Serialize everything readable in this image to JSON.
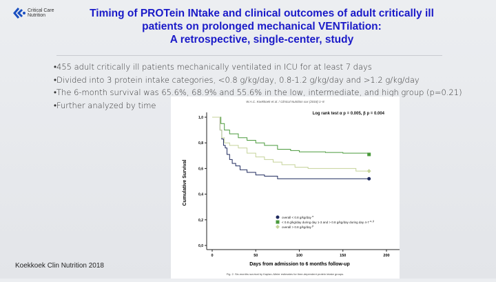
{
  "logo": {
    "text_line1": "Critical Care",
    "text_line2": "Nutrition"
  },
  "title": [
    "Timing of PROTein INtake and clinical outcomes of adult critically ill",
    "patients on prolonged mechanical VENTilation:",
    "A retrospective, single-center, study"
  ],
  "bullets": [
    "•455 adult critically ill patients mechanically ventilated in ICU for at least 7 days",
    "•Divided into 3 protein intake categories, <0.8 g/kg/day, 0.8-1.2 g/kg/day and >1.2 g/kg/day",
    "•The 6-month survival was 65.6%, 68.9% and 55.6% in the low, intermediate, and high group (p=0.21)",
    "•Further analyzed by time"
  ],
  "citation": "Koekkoek Clin Nutrition 2018",
  "chart_data": {
    "type": "line",
    "header": "W.A.C. Koekkoek et al. / Clinical Nutrition xxx (2018) 1–8",
    "annotation": "Log rank test α p = 0.005, β p = 0.004",
    "xlabel": "Days from admission to 6 months follow-up",
    "ylabel": "Cumulative Survival",
    "xlim": [
      0,
      200
    ],
    "ylim": [
      0,
      1
    ],
    "xticks": [
      "0",
      "50",
      "100",
      "150",
      "200"
    ],
    "yticks": [
      "0,0",
      "0,2",
      "0,4",
      "0,6",
      "0,8",
      "1,0"
    ],
    "caption": "Fig. 2. Six-months survival by Kaplan–Meier estimates for time-dependent protein intake groups.",
    "legend_position": "bottom-center",
    "series": [
      {
        "name": "overall < 0.8 g/kg/day",
        "superscript": "α",
        "color": "#1f2a5e",
        "marker": "circle",
        "x": [
          0,
          7,
          9,
          11,
          13,
          15,
          17,
          20,
          23,
          27,
          32,
          40,
          50,
          60,
          75,
          180
        ],
        "y": [
          1,
          1,
          0.9,
          0.83,
          0.78,
          0.76,
          0.71,
          0.67,
          0.64,
          0.62,
          0.59,
          0.57,
          0.55,
          0.54,
          0.52,
          0.52
        ]
      },
      {
        "name": "< 0.8 g/kg/day during day 1-3 and > 0.8 g/kg/day during day 4-7",
        "superscript": "α, β",
        "color": "#4a9a3c",
        "marker": "square",
        "x": [
          0,
          7,
          10,
          14,
          20,
          30,
          40,
          50,
          60,
          75,
          90,
          100,
          130,
          150,
          180
        ],
        "y": [
          1,
          1,
          0.95,
          0.9,
          0.87,
          0.84,
          0.82,
          0.8,
          0.78,
          0.75,
          0.74,
          0.73,
          0.725,
          0.72,
          0.71
        ]
      },
      {
        "name": "overall > 0.8 g/kg/day",
        "superscript": "β",
        "color": "#c5d39a",
        "marker": "diamond",
        "x": [
          0,
          7,
          9,
          11,
          14,
          20,
          30,
          40,
          50,
          60,
          70,
          80,
          95,
          110,
          150,
          165,
          180
        ],
        "y": [
          1,
          1,
          0.9,
          0.84,
          0.8,
          0.78,
          0.76,
          0.72,
          0.69,
          0.67,
          0.65,
          0.63,
          0.61,
          0.6,
          0.6,
          0.58,
          0.58
        ]
      }
    ]
  }
}
